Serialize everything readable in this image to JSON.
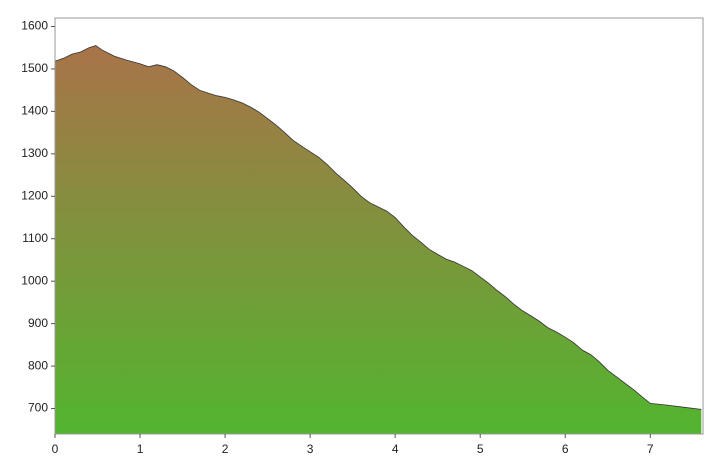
{
  "chart_data": {
    "type": "area",
    "x": [
      0,
      0.1,
      0.2,
      0.3,
      0.4,
      0.48,
      0.55,
      0.7,
      0.85,
      1.0,
      1.1,
      1.2,
      1.3,
      1.4,
      1.5,
      1.6,
      1.7,
      1.8,
      1.9,
      2.0,
      2.1,
      2.2,
      2.3,
      2.4,
      2.5,
      2.6,
      2.7,
      2.8,
      2.9,
      3.0,
      3.1,
      3.2,
      3.3,
      3.4,
      3.5,
      3.6,
      3.7,
      3.8,
      3.9,
      4.0,
      4.1,
      4.2,
      4.3,
      4.4,
      4.5,
      4.6,
      4.7,
      4.8,
      4.9,
      5.0,
      5.1,
      5.2,
      5.3,
      5.4,
      5.5,
      5.6,
      5.7,
      5.8,
      5.9,
      6.0,
      6.1,
      6.2,
      6.3,
      6.4,
      6.5,
      6.6,
      6.7,
      6.8,
      6.9,
      7.0,
      7.2,
      7.4,
      7.6
    ],
    "values": [
      1518,
      1525,
      1535,
      1540,
      1550,
      1555,
      1545,
      1530,
      1520,
      1512,
      1505,
      1510,
      1505,
      1495,
      1480,
      1463,
      1450,
      1443,
      1437,
      1433,
      1427,
      1420,
      1410,
      1398,
      1383,
      1368,
      1350,
      1332,
      1318,
      1305,
      1292,
      1275,
      1255,
      1238,
      1220,
      1200,
      1185,
      1175,
      1165,
      1150,
      1128,
      1108,
      1092,
      1075,
      1063,
      1052,
      1045,
      1035,
      1025,
      1010,
      995,
      978,
      963,
      945,
      930,
      918,
      905,
      890,
      880,
      868,
      855,
      838,
      827,
      810,
      790,
      775,
      760,
      745,
      728,
      712,
      708,
      703,
      698
    ],
    "color_top": "#a97349",
    "color_bottom": "#52b52f",
    "xlim": [
      0,
      7.62
    ],
    "xticks": [
      0,
      1,
      2,
      3,
      4,
      5,
      6,
      7
    ],
    "ylim": [
      640,
      1620
    ],
    "yticks": [
      700,
      800,
      900,
      1000,
      1100,
      1200,
      1300,
      1400,
      1500,
      1600
    ]
  }
}
